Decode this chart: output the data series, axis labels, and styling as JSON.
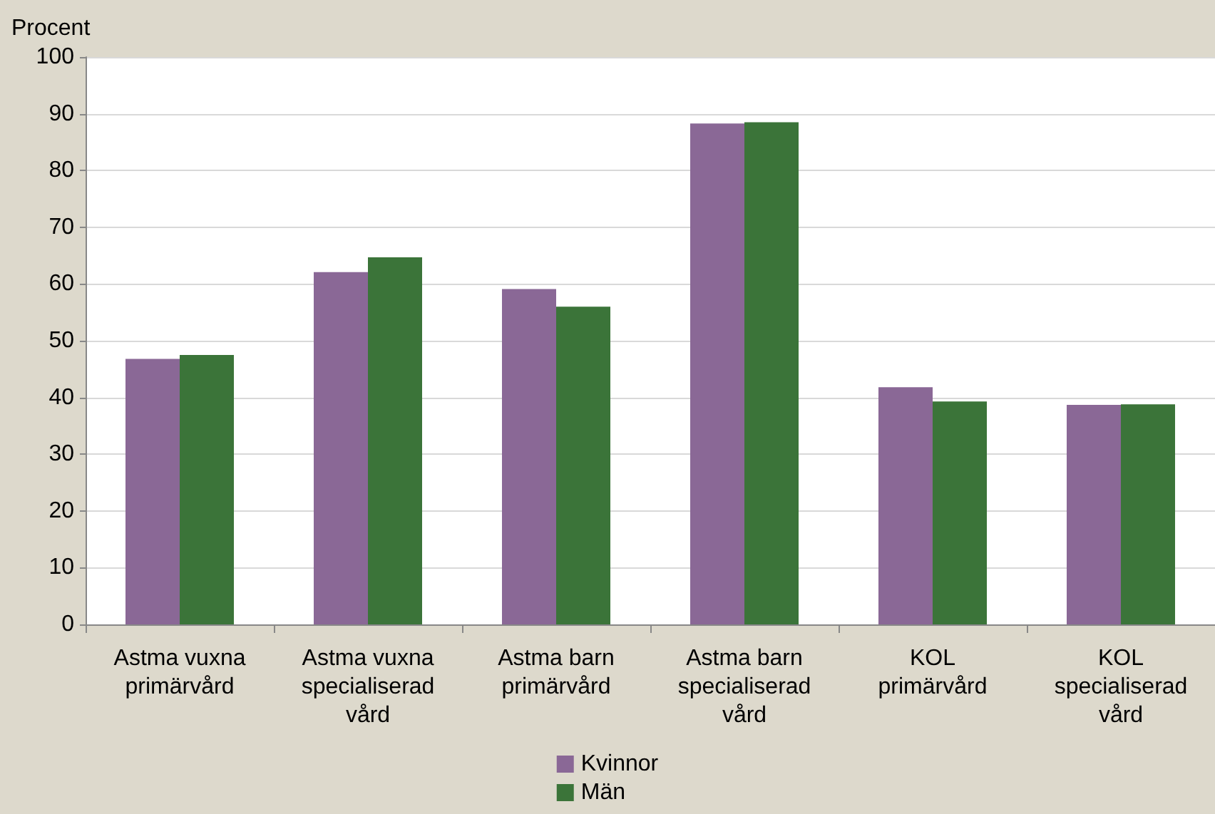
{
  "chart_data": {
    "type": "bar",
    "ylabel": "Procent",
    "categories": [
      "Astma vuxna\nprimärvård",
      "Astma vuxna\nspecialiserad\nvård",
      "Astma barn\nprimärvård",
      "Astma barn\nspecialiserad\nvård",
      "KOL\nprimärvård",
      "KOL\nspecialiserad\nvård"
    ],
    "series": [
      {
        "name": "Kvinnor",
        "color": "#8a6896",
        "values": [
          46.8,
          62.1,
          59.1,
          88.3,
          41.8,
          38.7
        ]
      },
      {
        "name": "Män",
        "color": "#3b7439",
        "values": [
          47.5,
          64.7,
          56.0,
          88.5,
          39.3,
          38.8
        ]
      }
    ],
    "ylim": [
      0,
      100
    ],
    "yticks": [
      0,
      10,
      20,
      30,
      40,
      50,
      60,
      70,
      80,
      90,
      100
    ],
    "grid": "y",
    "legend": "bottom"
  }
}
